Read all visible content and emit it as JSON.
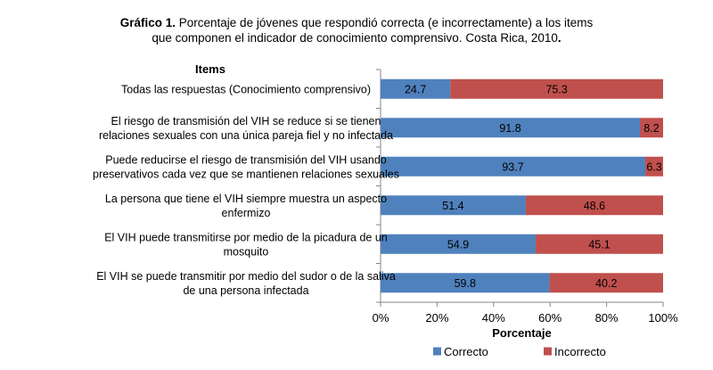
{
  "title": {
    "prefix": "Gráfico 1.",
    "line1_rest": " Porcentaje de jóvenes que respondió correcta (e incorrectamente) a los items",
    "line2": "que componen el indicador de conocimiento comprensivo. Costa Rica, 2010",
    "line2_end": "."
  },
  "chart_data": {
    "type": "bar",
    "orientation": "horizontal",
    "stacked": true,
    "percent": true,
    "category_header": "Items",
    "categories": [
      [
        "Todas las respuestas (Conocimiento comprensivo)"
      ],
      [
        "El riesgo de transmisión del VIH se reduce si se tienen",
        "relaciones sexuales con una única pareja fiel y no infectada"
      ],
      [
        "Puede reducirse el riesgo de transmisión del VIH usando",
        "preservativos cada vez que se mantienen relaciones sexuales"
      ],
      [
        "La persona que tiene el VIH siempre muestra un aspecto",
        "enfermizo"
      ],
      [
        "El VIH puede transmitirse por medio de la picadura de un",
        "mosquito"
      ],
      [
        "El VIH se puede transmitir por medio del sudor o de la saliva",
        "de una persona infectada"
      ]
    ],
    "series": [
      {
        "name": "Correcto",
        "color": "#4F81BD",
        "values": [
          24.7,
          91.8,
          93.7,
          51.4,
          54.9,
          59.8
        ]
      },
      {
        "name": "Incorrecto",
        "color": "#C0504D",
        "values": [
          75.3,
          8.2,
          6.3,
          48.6,
          45.1,
          40.2
        ]
      }
    ],
    "xlabel": "Porcentaje",
    "xticks": [
      "0%",
      "20%",
      "40%",
      "60%",
      "80%",
      "100%"
    ],
    "xlim": [
      0,
      100
    ],
    "legend_position": "bottom"
  }
}
